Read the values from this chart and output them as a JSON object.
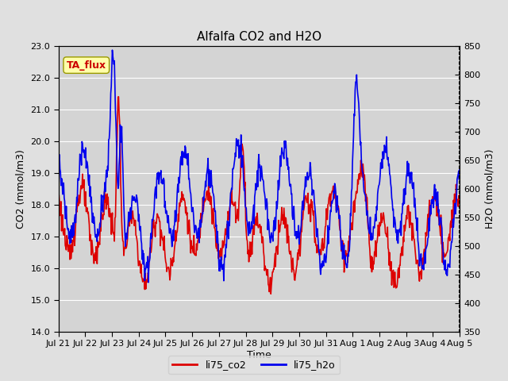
{
  "title": "Alfalfa CO2 and H2O",
  "xlabel": "Time",
  "ylabel_left": "CO2 (mmol/m3)",
  "ylabel_right": "H2O (mmol/m3)",
  "ylim_left": [
    14.0,
    23.0
  ],
  "ylim_right": [
    350,
    850
  ],
  "yticks_left": [
    14.0,
    15.0,
    16.0,
    17.0,
    18.0,
    19.0,
    20.0,
    21.0,
    22.0,
    23.0
  ],
  "yticks_right": [
    350,
    400,
    450,
    500,
    550,
    600,
    650,
    700,
    750,
    800,
    850
  ],
  "xtick_labels": [
    "Jul 21",
    "Jul 22",
    "Jul 23",
    "Jul 24",
    "Jul 25",
    "Jul 26",
    "Jul 27",
    "Jul 28",
    "Jul 29",
    "Jul 30",
    "Jul 31",
    "Aug 1",
    "Aug 2",
    "Aug 3",
    "Aug 4",
    "Aug 5"
  ],
  "color_co2": "#dd0000",
  "color_h2o": "#0000ee",
  "label_co2": "li75_co2",
  "label_h2o": "li75_h2o",
  "annotation_text": "TA_flux",
  "annotation_color": "#cc0000",
  "annotation_bg": "#ffffaa",
  "bg_color": "#e0e0e0",
  "plot_bg_color": "#d4d4d4",
  "grid_color": "#ffffff",
  "title_fontsize": 11,
  "label_fontsize": 9,
  "tick_fontsize": 8,
  "legend_fontsize": 9,
  "linewidth": 1.2
}
